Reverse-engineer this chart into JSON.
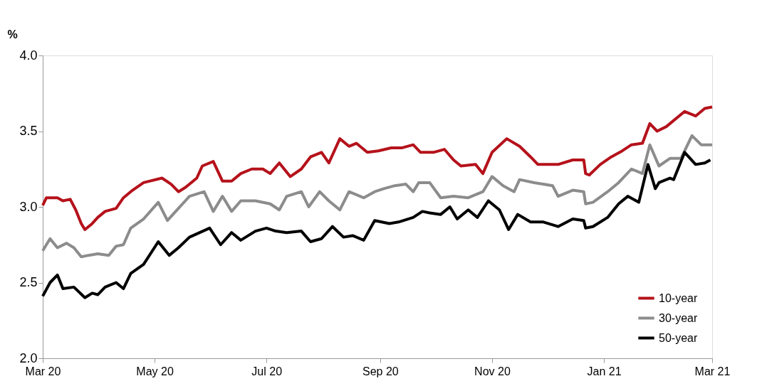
{
  "chart_data": {
    "type": "line",
    "ylabel": "%",
    "xlim": [
      "2020-03-01",
      "2021-03-01"
    ],
    "xticks": [
      {
        "value": "2020-03-01",
        "label": "Mar 20"
      },
      {
        "value": "2020-05-01",
        "label": "May 20"
      },
      {
        "value": "2020-07-01",
        "label": "Jul 20"
      },
      {
        "value": "2020-09-01",
        "label": "Sep 20"
      },
      {
        "value": "2020-11-01",
        "label": "Nov 20"
      },
      {
        "value": "2021-01-01",
        "label": "Jan 21"
      },
      {
        "value": "2021-03-01",
        "label": "Mar 21"
      }
    ],
    "ylim": [
      2.0,
      4.0
    ],
    "yticks": [
      {
        "value": 2,
        "label": "2.0"
      },
      {
        "value": 2.5,
        "label": "2.5"
      },
      {
        "value": 3,
        "label": "3.0"
      },
      {
        "value": 3.5,
        "label": "3.5"
      },
      {
        "value": 4,
        "label": "4.0"
      }
    ],
    "grid": false,
    "legend": "bottom right",
    "marker": "none",
    "line_style": "solid",
    "series": [
      {
        "name": "10-year",
        "color": "#b5121b",
        "x": [
          "2020-03-01",
          "2020-03-03",
          "2020-03-09",
          "2020-03-12",
          "2020-03-16",
          "2020-03-19",
          "2020-03-22",
          "2020-03-24",
          "2020-03-28",
          "2020-03-31",
          "2020-04-04",
          "2020-04-10",
          "2020-04-14",
          "2020-04-19",
          "2020-04-25",
          "2020-05-05",
          "2020-05-10",
          "2020-05-14",
          "2020-05-18",
          "2020-05-24",
          "2020-05-27",
          "2020-06-02",
          "2020-06-07",
          "2020-06-12",
          "2020-06-17",
          "2020-06-23",
          "2020-06-29",
          "2020-07-03",
          "2020-07-08",
          "2020-07-14",
          "2020-07-20",
          "2020-07-25",
          "2020-07-31",
          "2020-08-04",
          "2020-08-10",
          "2020-08-15",
          "2020-08-19",
          "2020-08-25",
          "2020-08-31",
          "2020-09-07",
          "2020-09-13",
          "2020-09-19",
          "2020-09-23",
          "2020-09-30",
          "2020-10-06",
          "2020-10-11",
          "2020-10-15",
          "2020-10-23",
          "2020-10-27",
          "2020-11-01",
          "2020-11-09",
          "2020-11-16",
          "2020-11-22",
          "2020-11-26",
          "2020-12-02",
          "2020-12-07",
          "2020-12-15",
          "2020-12-21",
          "2020-12-22",
          "2020-12-24",
          "2020-12-30",
          "2021-01-05",
          "2021-01-11",
          "2021-01-16",
          "2021-01-22",
          "2021-01-26",
          "2021-01-30",
          "2021-02-04",
          "2021-02-14",
          "2021-02-20",
          "2021-02-25",
          "2021-03-01"
        ],
        "values": [
          3.01,
          3.06,
          3.06,
          3.04,
          3.05,
          2.98,
          2.89,
          2.85,
          2.89,
          2.93,
          2.97,
          2.99,
          3.06,
          3.11,
          3.16,
          3.19,
          3.15,
          3.1,
          3.13,
          3.19,
          3.27,
          3.3,
          3.17,
          3.17,
          3.22,
          3.25,
          3.25,
          3.22,
          3.29,
          3.2,
          3.25,
          3.33,
          3.36,
          3.29,
          3.45,
          3.4,
          3.42,
          3.36,
          3.37,
          3.39,
          3.39,
          3.41,
          3.36,
          3.36,
          3.38,
          3.31,
          3.27,
          3.28,
          3.22,
          3.36,
          3.45,
          3.4,
          3.33,
          3.28,
          3.28,
          3.28,
          3.31,
          3.31,
          3.22,
          3.21,
          3.28,
          3.33,
          3.37,
          3.41,
          3.42,
          3.55,
          3.5,
          3.53,
          3.63,
          3.6,
          3.65,
          3.66
        ]
      },
      {
        "name": "30-year",
        "color": "#8c8c8c",
        "x": [
          "2020-03-01",
          "2020-03-05",
          "2020-03-09",
          "2020-03-14",
          "2020-03-18",
          "2020-03-22",
          "2020-03-26",
          "2020-03-31",
          "2020-04-06",
          "2020-04-10",
          "2020-04-14",
          "2020-04-18",
          "2020-04-25",
          "2020-05-03",
          "2020-05-08",
          "2020-05-14",
          "2020-05-20",
          "2020-05-28",
          "2020-06-02",
          "2020-06-07",
          "2020-06-12",
          "2020-06-17",
          "2020-06-25",
          "2020-07-03",
          "2020-07-08",
          "2020-07-12",
          "2020-07-20",
          "2020-07-24",
          "2020-07-30",
          "2020-08-04",
          "2020-08-10",
          "2020-08-15",
          "2020-08-23",
          "2020-08-29",
          "2020-09-03",
          "2020-09-09",
          "2020-09-15",
          "2020-09-19",
          "2020-09-22",
          "2020-09-28",
          "2020-10-04",
          "2020-10-11",
          "2020-10-19",
          "2020-10-27",
          "2020-11-01",
          "2020-11-07",
          "2020-11-13",
          "2020-11-16",
          "2020-11-24",
          "2020-12-04",
          "2020-12-07",
          "2020-12-15",
          "2020-12-21",
          "2020-12-22",
          "2020-12-26",
          "2021-01-03",
          "2021-01-09",
          "2021-01-16",
          "2021-01-22",
          "2021-01-26",
          "2021-01-31",
          "2021-02-06",
          "2021-02-12",
          "2021-02-18",
          "2021-02-23",
          "2021-03-01"
        ],
        "values": [
          2.71,
          2.79,
          2.73,
          2.76,
          2.73,
          2.67,
          2.68,
          2.69,
          2.68,
          2.74,
          2.75,
          2.86,
          2.92,
          3.03,
          2.91,
          2.99,
          3.07,
          3.1,
          2.97,
          3.07,
          2.97,
          3.04,
          3.04,
          3.02,
          2.98,
          3.07,
          3.1,
          3.0,
          3.1,
          3.04,
          2.98,
          3.1,
          3.06,
          3.1,
          3.12,
          3.14,
          3.15,
          3.1,
          3.16,
          3.16,
          3.06,
          3.07,
          3.06,
          3.1,
          3.2,
          3.14,
          3.1,
          3.18,
          3.16,
          3.14,
          3.07,
          3.11,
          3.1,
          3.02,
          3.03,
          3.1,
          3.16,
          3.25,
          3.22,
          3.41,
          3.27,
          3.32,
          3.32,
          3.47,
          3.41,
          3.41
        ]
      },
      {
        "name": "50-year",
        "color": "#000000",
        "x": [
          "2020-03-01",
          "2020-03-05",
          "2020-03-09",
          "2020-03-12",
          "2020-03-18",
          "2020-03-24",
          "2020-03-28",
          "2020-03-31",
          "2020-04-04",
          "2020-04-10",
          "2020-04-14",
          "2020-04-18",
          "2020-04-25",
          "2020-05-03",
          "2020-05-09",
          "2020-05-14",
          "2020-05-20",
          "2020-05-31",
          "2020-06-06",
          "2020-06-12",
          "2020-06-17",
          "2020-06-25",
          "2020-07-01",
          "2020-07-06",
          "2020-07-12",
          "2020-07-20",
          "2020-07-25",
          "2020-07-31",
          "2020-08-06",
          "2020-08-12",
          "2020-08-17",
          "2020-08-23",
          "2020-08-29",
          "2020-09-06",
          "2020-09-11",
          "2020-09-19",
          "2020-09-24",
          "2020-09-28",
          "2020-10-04",
          "2020-10-09",
          "2020-10-13",
          "2020-10-19",
          "2020-10-24",
          "2020-10-30",
          "2020-11-05",
          "2020-11-10",
          "2020-11-15",
          "2020-11-22",
          "2020-11-29",
          "2020-12-07",
          "2020-12-15",
          "2020-12-21",
          "2020-12-22",
          "2020-12-26",
          "2021-01-03",
          "2021-01-09",
          "2021-01-14",
          "2021-01-20",
          "2021-01-25",
          "2021-01-29",
          "2021-01-31",
          "2021-02-06",
          "2021-02-08",
          "2021-02-14",
          "2021-02-20",
          "2021-02-25",
          "2021-02-28"
        ],
        "values": [
          2.41,
          2.5,
          2.55,
          2.46,
          2.47,
          2.4,
          2.43,
          2.42,
          2.47,
          2.5,
          2.46,
          2.56,
          2.62,
          2.77,
          2.68,
          2.73,
          2.8,
          2.86,
          2.75,
          2.83,
          2.78,
          2.84,
          2.86,
          2.84,
          2.83,
          2.84,
          2.77,
          2.79,
          2.87,
          2.8,
          2.81,
          2.78,
          2.91,
          2.89,
          2.9,
          2.93,
          2.97,
          2.96,
          2.95,
          3.0,
          2.92,
          2.98,
          2.93,
          3.04,
          2.98,
          2.85,
          2.95,
          2.9,
          2.9,
          2.87,
          2.92,
          2.91,
          2.86,
          2.87,
          2.93,
          3.02,
          3.07,
          3.03,
          3.28,
          3.12,
          3.16,
          3.19,
          3.18,
          3.36,
          3.28,
          3.29,
          3.31
        ]
      }
    ]
  }
}
